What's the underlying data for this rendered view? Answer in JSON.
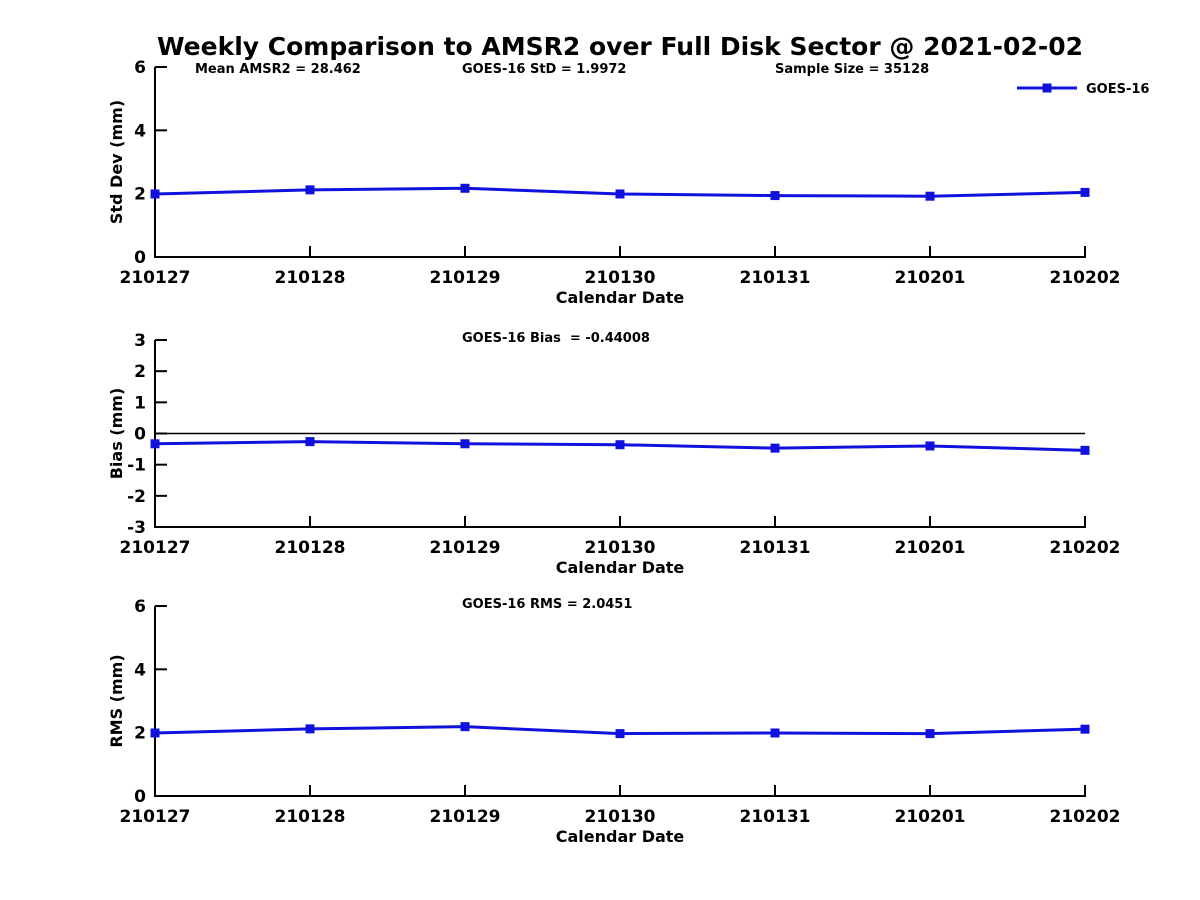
{
  "title": "Weekly Comparison to AMSR2 over Full Disk Sector @ 2021-02-02",
  "accent_color": "#1111dd",
  "chart_data": [
    {
      "type": "line",
      "panel": "std_dev",
      "categories": [
        "210127",
        "210128",
        "210129",
        "210130",
        "210131",
        "210201",
        "210202"
      ],
      "series": [
        {
          "name": "GOES-16",
          "color": "#1111dd",
          "marker": "square",
          "values": [
            1.99,
            2.12,
            2.17,
            1.99,
            1.94,
            1.92,
            2.04
          ]
        }
      ],
      "annotations": [
        "Mean AMSR2 = 28.462",
        "GOES-16 StD = 1.9972",
        "Sample Size = 35128"
      ],
      "xlabel": "Calendar Date",
      "ylabel": "Std Dev (mm)",
      "ylim": [
        0,
        6
      ],
      "yticks": [
        0,
        2,
        4,
        6
      ],
      "zero_line": false,
      "grid": false,
      "legend": {
        "show": true,
        "label": "GOES-16",
        "position": "top-right"
      }
    },
    {
      "type": "line",
      "panel": "bias",
      "categories": [
        "210127",
        "210128",
        "210129",
        "210130",
        "210131",
        "210201",
        "210202"
      ],
      "series": [
        {
          "name": "GOES-16",
          "color": "#1111dd",
          "marker": "square",
          "values": [
            -0.33,
            -0.26,
            -0.33,
            -0.36,
            -0.47,
            -0.4,
            -0.54
          ]
        }
      ],
      "annotations": [
        "GOES-16 Bias  = -0.44008"
      ],
      "xlabel": "Calendar Date",
      "ylabel": "Bias (mm)",
      "ylim": [
        -3,
        3
      ],
      "yticks": [
        -3,
        -2,
        -1,
        0,
        1,
        2,
        3
      ],
      "zero_line": true,
      "grid": false,
      "legend": {
        "show": false
      }
    },
    {
      "type": "line",
      "panel": "rms",
      "categories": [
        "210127",
        "210128",
        "210129",
        "210130",
        "210131",
        "210201",
        "210202"
      ],
      "series": [
        {
          "name": "GOES-16",
          "color": "#1111dd",
          "marker": "square",
          "values": [
            1.99,
            2.12,
            2.19,
            1.97,
            1.99,
            1.97,
            2.11
          ]
        }
      ],
      "annotations": [
        "GOES-16 RMS = 2.0451"
      ],
      "xlabel": "Calendar Date",
      "ylabel": "RMS (mm)",
      "ylim": [
        0,
        6
      ],
      "yticks": [
        0,
        2,
        4,
        6
      ],
      "zero_line": false,
      "grid": false,
      "legend": {
        "show": false
      }
    }
  ]
}
